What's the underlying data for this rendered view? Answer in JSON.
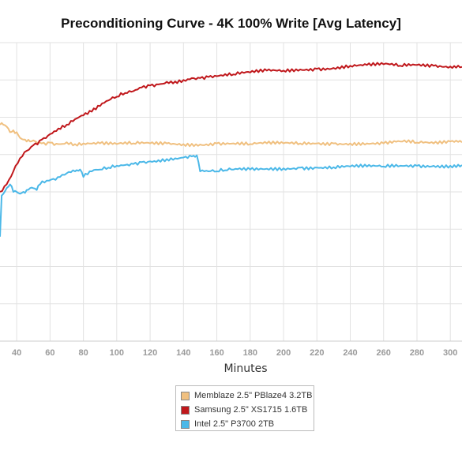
{
  "chart_data": {
    "type": "line",
    "title": "Preconditioning Curve - 4K 100% Write [Avg Latency]",
    "xlabel": "Minutes",
    "ylabel": "",
    "xlim": [
      30,
      307
    ],
    "ylim": [
      0,
      8
    ],
    "x_ticks": [
      40,
      60,
      80,
      100,
      120,
      140,
      160,
      180,
      200,
      220,
      240,
      260,
      280,
      300
    ],
    "grid": true,
    "legend_position": "bottom",
    "series": [
      {
        "name": "Memblaze 2.5\" PBlaze4 3.2TB",
        "color": "#f0c080",
        "points": [
          [
            30,
            5.8
          ],
          [
            32,
            5.8
          ],
          [
            34,
            5.75
          ],
          [
            36,
            5.6
          ],
          [
            38,
            5.65
          ],
          [
            40,
            5.6
          ],
          [
            42,
            5.45
          ],
          [
            44,
            5.4
          ],
          [
            46,
            5.35
          ],
          [
            48,
            5.35
          ],
          [
            50,
            5.38
          ],
          [
            55,
            5.3
          ],
          [
            60,
            5.32
          ],
          [
            65,
            5.28
          ],
          [
            70,
            5.33
          ],
          [
            75,
            5.28
          ],
          [
            80,
            5.3
          ],
          [
            90,
            5.3
          ],
          [
            100,
            5.28
          ],
          [
            110,
            5.3
          ],
          [
            120,
            5.3
          ],
          [
            130,
            5.3
          ],
          [
            140,
            5.28
          ],
          [
            150,
            5.27
          ],
          [
            160,
            5.3
          ],
          [
            170,
            5.3
          ],
          [
            180,
            5.28
          ],
          [
            190,
            5.3
          ],
          [
            200,
            5.3
          ],
          [
            210,
            5.3
          ],
          [
            220,
            5.3
          ],
          [
            230,
            5.3
          ],
          [
            240,
            5.3
          ],
          [
            250,
            5.3
          ],
          [
            260,
            5.3
          ],
          [
            270,
            5.35
          ],
          [
            280,
            5.32
          ],
          [
            290,
            5.3
          ],
          [
            300,
            5.35
          ],
          [
            307,
            5.33
          ]
        ]
      },
      {
        "name": "Samsung 2.5\" XS1715 1.6TB",
        "color": "#c0181c",
        "points": [
          [
            30,
            4.0
          ],
          [
            34,
            4.2
          ],
          [
            38,
            4.55
          ],
          [
            42,
            4.9
          ],
          [
            46,
            5.1
          ],
          [
            50,
            5.25
          ],
          [
            55,
            5.4
          ],
          [
            60,
            5.55
          ],
          [
            65,
            5.7
          ],
          [
            70,
            5.8
          ],
          [
            75,
            5.95
          ],
          [
            80,
            6.05
          ],
          [
            85,
            6.15
          ],
          [
            90,
            6.3
          ],
          [
            95,
            6.45
          ],
          [
            100,
            6.55
          ],
          [
            105,
            6.65
          ],
          [
            110,
            6.7
          ],
          [
            115,
            6.8
          ],
          [
            120,
            6.85
          ],
          [
            125,
            6.88
          ],
          [
            130,
            6.95
          ],
          [
            135,
            6.96
          ],
          [
            140,
            7.0
          ],
          [
            145,
            7.05
          ],
          [
            150,
            7.05
          ],
          [
            155,
            7.08
          ],
          [
            160,
            7.1
          ],
          [
            170,
            7.15
          ],
          [
            180,
            7.2
          ],
          [
            190,
            7.25
          ],
          [
            200,
            7.25
          ],
          [
            210,
            7.28
          ],
          [
            220,
            7.3
          ],
          [
            230,
            7.32
          ],
          [
            240,
            7.38
          ],
          [
            250,
            7.4
          ],
          [
            260,
            7.42
          ],
          [
            270,
            7.38
          ],
          [
            280,
            7.4
          ],
          [
            290,
            7.38
          ],
          [
            300,
            7.36
          ],
          [
            307,
            7.35
          ]
        ]
      },
      {
        "name": "Intel 2.5\" P3700 2TB",
        "color": "#4bb8e8",
        "points": [
          [
            30,
            2.8
          ],
          [
            31,
            3.9
          ],
          [
            32,
            3.95
          ],
          [
            34,
            4.1
          ],
          [
            36,
            4.2
          ],
          [
            38,
            4.0
          ],
          [
            40,
            4.0
          ],
          [
            42,
            3.95
          ],
          [
            44,
            4.0
          ],
          [
            46,
            4.05
          ],
          [
            48,
            4.1
          ],
          [
            50,
            4.1
          ],
          [
            52,
            4.05
          ],
          [
            54,
            4.2
          ],
          [
            58,
            4.3
          ],
          [
            62,
            4.35
          ],
          [
            66,
            4.4
          ],
          [
            70,
            4.5
          ],
          [
            75,
            4.55
          ],
          [
            78,
            4.6
          ],
          [
            80,
            4.4
          ],
          [
            85,
            4.55
          ],
          [
            90,
            4.6
          ],
          [
            95,
            4.65
          ],
          [
            100,
            4.7
          ],
          [
            105,
            4.72
          ],
          [
            110,
            4.75
          ],
          [
            115,
            4.8
          ],
          [
            120,
            4.82
          ],
          [
            125,
            4.85
          ],
          [
            130,
            4.88
          ],
          [
            135,
            4.9
          ],
          [
            140,
            4.92
          ],
          [
            145,
            4.95
          ],
          [
            148,
            4.98
          ],
          [
            150,
            4.55
          ],
          [
            155,
            4.55
          ],
          [
            160,
            4.55
          ],
          [
            165,
            4.58
          ],
          [
            170,
            4.6
          ],
          [
            180,
            4.6
          ],
          [
            190,
            4.62
          ],
          [
            200,
            4.63
          ],
          [
            210,
            4.65
          ],
          [
            220,
            4.65
          ],
          [
            230,
            4.66
          ],
          [
            240,
            4.68
          ],
          [
            250,
            4.68
          ],
          [
            260,
            4.68
          ],
          [
            270,
            4.7
          ],
          [
            280,
            4.7
          ],
          [
            290,
            4.7
          ],
          [
            300,
            4.7
          ],
          [
            307,
            4.72
          ]
        ]
      }
    ]
  }
}
